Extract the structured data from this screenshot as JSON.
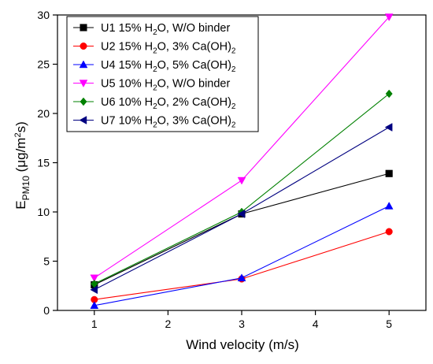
{
  "chart_data": {
    "type": "line",
    "xlabel": "Wind velocity (m/s)",
    "ylabel": {
      "main": "E",
      "sub": "PM10",
      "unit_pre": " (μg/m",
      "unit_sup": "2",
      "unit_post": "s)"
    },
    "xlim": [
      0.5,
      5.5
    ],
    "ylim": [
      0,
      30
    ],
    "xticks": [
      1,
      2,
      3,
      4,
      5
    ],
    "yticks": [
      0,
      5,
      10,
      15,
      20,
      25,
      30
    ],
    "legend_position": "top-left",
    "x": [
      1,
      3,
      5
    ],
    "series": [
      {
        "name": "U1 15% H₂O, W/O binder",
        "name_parts": [
          "U1 15% H",
          "2",
          "O, W/O binder"
        ],
        "color": "#000000",
        "marker": "square",
        "values": [
          2.6,
          9.8,
          13.9
        ]
      },
      {
        "name": "U2 15% H₂O, 3% Ca(OH)₂",
        "name_parts": [
          "U2 15% H",
          "2",
          "O, 3% Ca(OH)",
          "2",
          ""
        ],
        "color": "#ff0000",
        "marker": "circle",
        "values": [
          1.1,
          3.2,
          8.0
        ]
      },
      {
        "name": "U4 15% H₂O, 5% Ca(OH)₂",
        "name_parts": [
          "U4 15% H",
          "2",
          "O, 5% Ca(OH)",
          "2",
          ""
        ],
        "color": "#0000ff",
        "marker": "triangle-up",
        "values": [
          0.5,
          3.3,
          10.6
        ]
      },
      {
        "name": "U5 10% H₂O, W/O binder",
        "name_parts": [
          "U5 10% H",
          "2",
          "O, W/O binder"
        ],
        "color": "#ff00ff",
        "marker": "triangle-down",
        "values": [
          3.3,
          13.2,
          29.8
        ]
      },
      {
        "name": "U6 10% H₂O, 2% Ca(OH)₂",
        "name_parts": [
          "U6 10% H",
          "2",
          "O, 2% Ca(OH)",
          "2",
          ""
        ],
        "color": "#008000",
        "marker": "diamond",
        "values": [
          2.7,
          10.0,
          22.0
        ]
      },
      {
        "name": "U7 10% H₂O, 3% Ca(OH)₂",
        "name_parts": [
          "U7 10% H",
          "2",
          "O, 3% Ca(OH)",
          "2",
          ""
        ],
        "color": "#000080",
        "marker": "triangle-left",
        "values": [
          2.1,
          9.8,
          18.6
        ]
      }
    ]
  }
}
